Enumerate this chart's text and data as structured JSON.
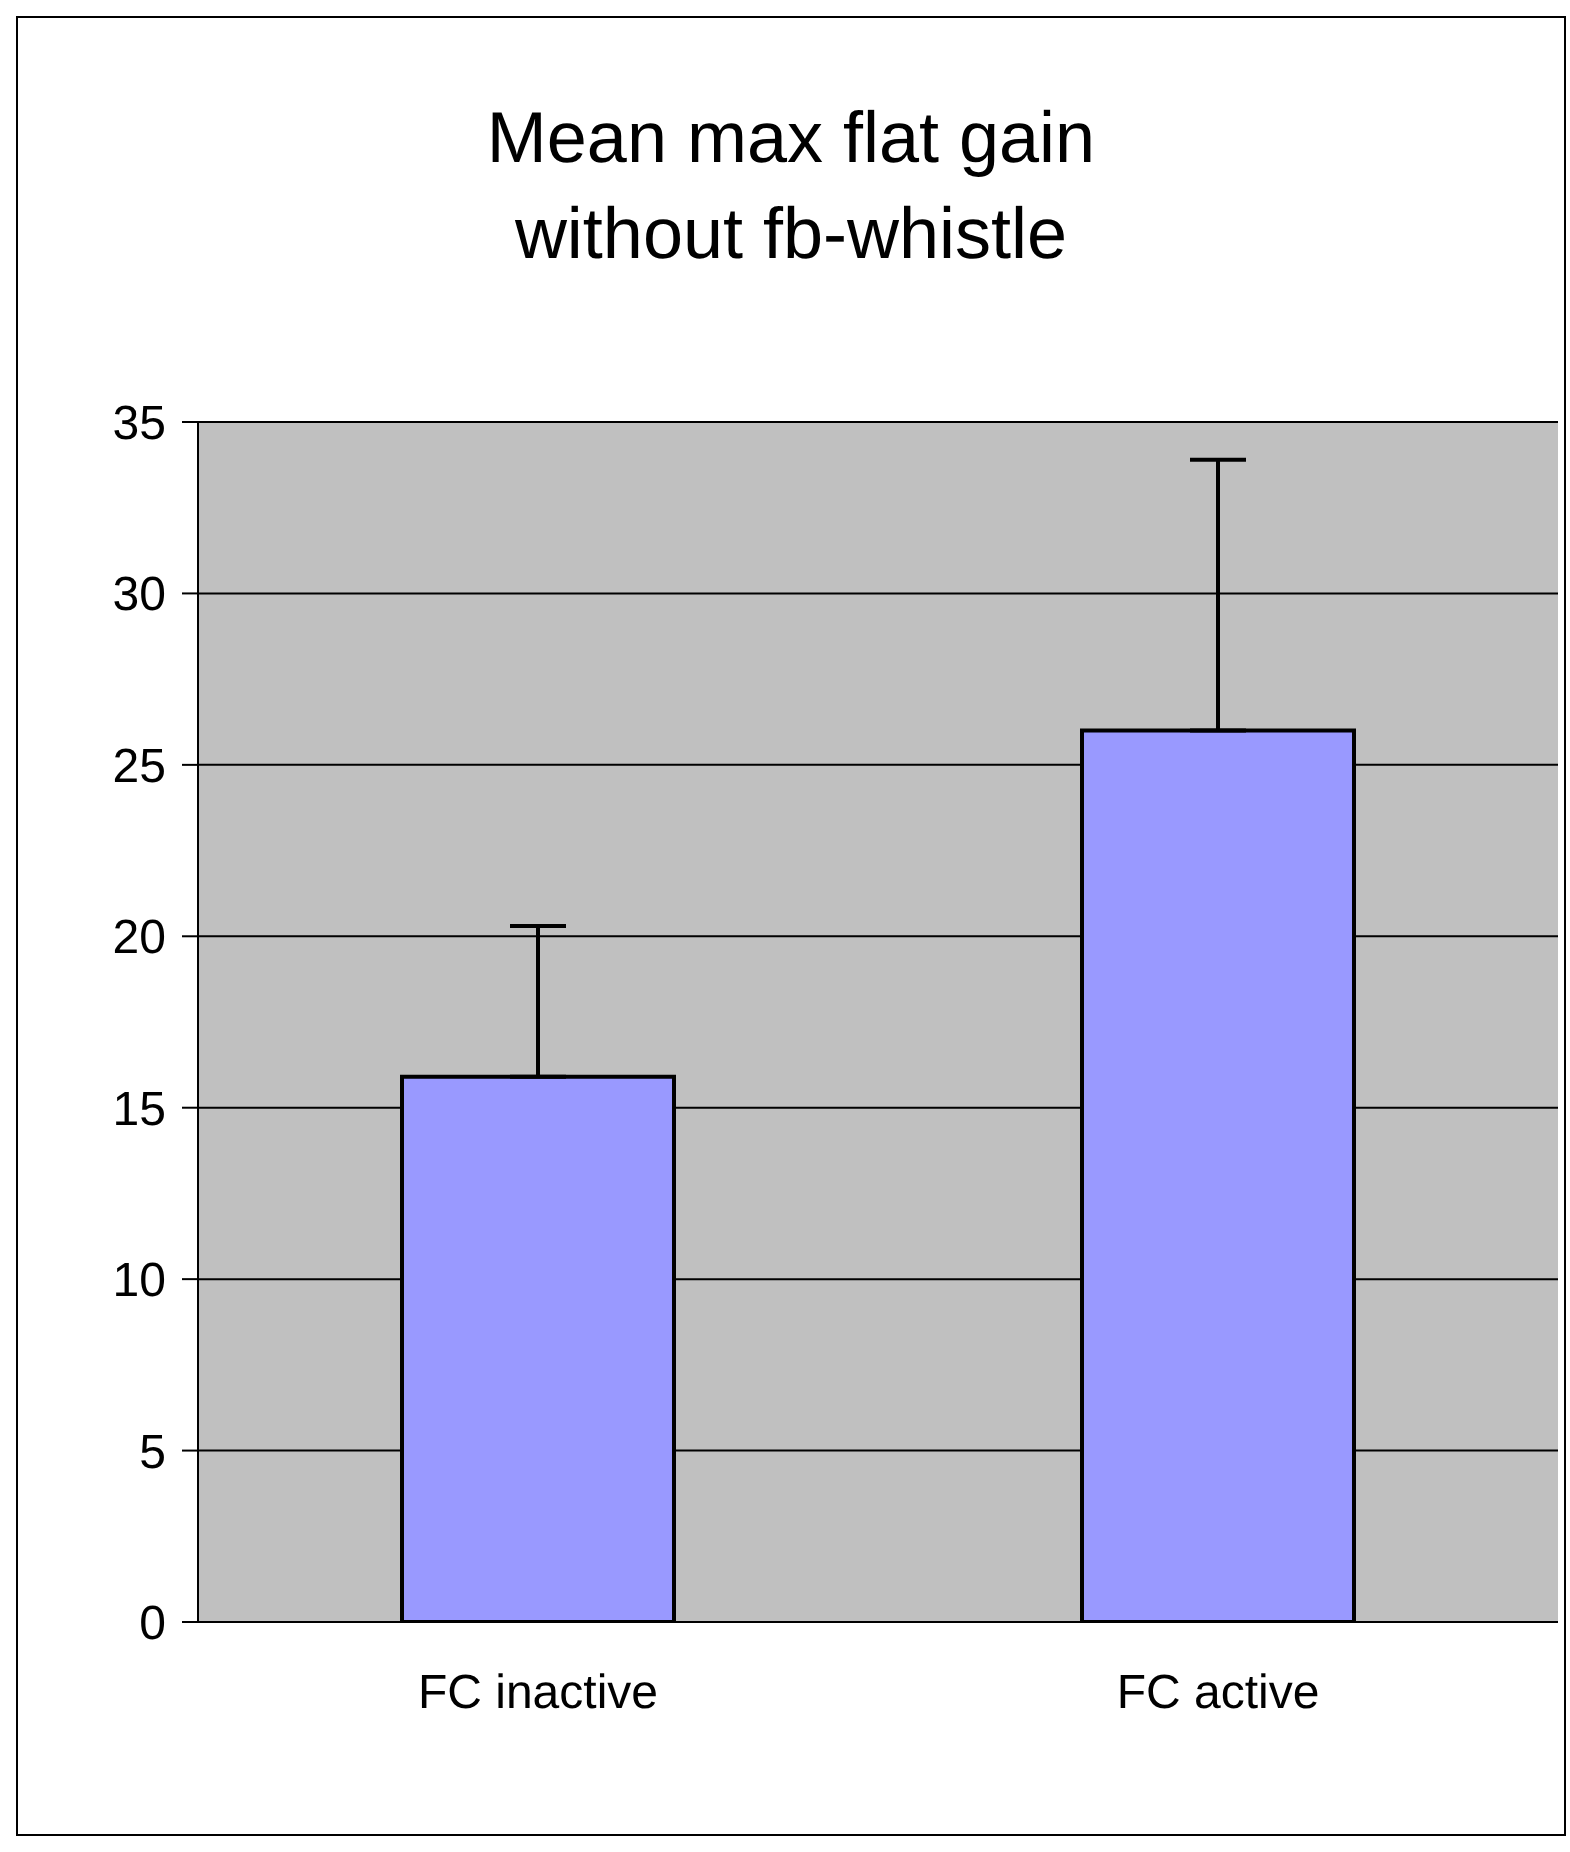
{
  "chart_data": {
    "type": "bar",
    "title": "Mean max flat gain without fb-whistle",
    "categories": [
      "FC inactive",
      "FC active"
    ],
    "values": [
      15.9,
      26.0
    ],
    "errors": [
      [
        15.9,
        20.3
      ],
      [
        26.0,
        33.9
      ]
    ],
    "color": "#9999ff",
    "ylim": [
      0,
      35
    ],
    "yticks": [
      0,
      5,
      10,
      15,
      20,
      25,
      30,
      35
    ],
    "grid": "y"
  }
}
